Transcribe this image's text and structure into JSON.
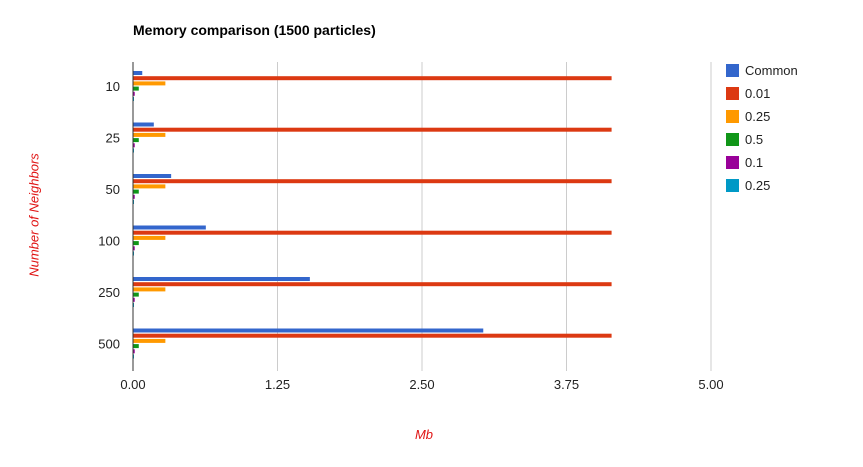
{
  "chart_data": {
    "type": "bar",
    "orientation": "horizontal",
    "title": "Memory comparison (1500 particles)",
    "xlabel": "Mb",
    "ylabel": "Number of Neighbors",
    "categories": [
      "10",
      "25",
      "50",
      "100",
      "250",
      "500"
    ],
    "xlim": [
      0,
      5
    ],
    "xticks": [
      "0.00",
      "1.25",
      "2.50",
      "3.75",
      "5.00"
    ],
    "xtick_values": [
      0,
      1.25,
      2.5,
      3.75,
      5
    ],
    "grid": true,
    "legend_position": "right",
    "series": [
      {
        "name": "Common",
        "color": "#3366cc",
        "values": [
          0.08,
          0.18,
          0.33,
          0.63,
          1.53,
          3.03
        ]
      },
      {
        "name": "0.01",
        "color": "#dc3912",
        "values": [
          4.14,
          4.14,
          4.14,
          4.14,
          4.14,
          4.14
        ]
      },
      {
        "name": "0.25",
        "color": "#ff9900",
        "values": [
          0.28,
          0.28,
          0.28,
          0.28,
          0.28,
          0.28
        ]
      },
      {
        "name": "0.5",
        "color": "#109618",
        "values": [
          0.05,
          0.05,
          0.05,
          0.05,
          0.05,
          0.05
        ]
      },
      {
        "name": "0.1",
        "color": "#990099",
        "values": [
          0.015,
          0.015,
          0.015,
          0.015,
          0.015,
          0.015
        ]
      },
      {
        "name": "0.25",
        "color": "#0099c6",
        "values": [
          0.008,
          0.008,
          0.008,
          0.008,
          0.008,
          0.008
        ]
      }
    ]
  }
}
